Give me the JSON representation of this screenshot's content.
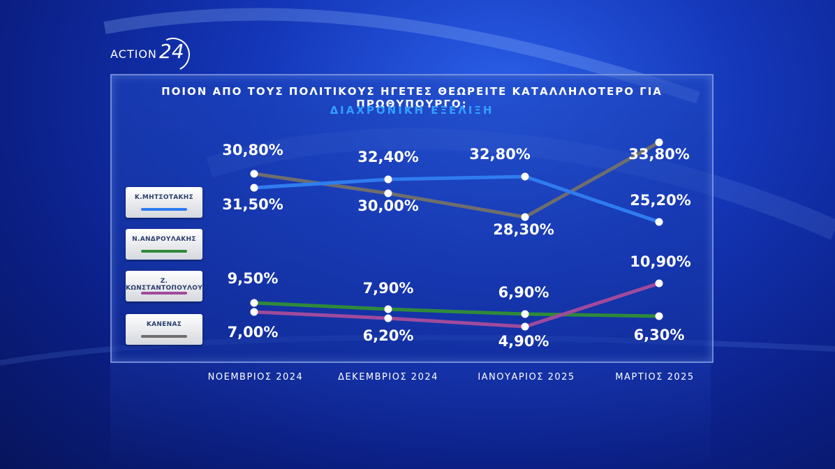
{
  "logo": {
    "word": "ACTION",
    "number": "24"
  },
  "title": "ΠΟΙΟΝ ΑΠΟ ΤΟΥΣ ΠΟΛΙΤΙΚΟΥΣ ΗΓΕΤΕΣ ΘΕΩΡΕΙΤΕ ΚΑΤΑΛΛΗΛΟΤΕΡΟ ΓΙΑ ΠΡΩΘΥΠΟΥΡΓΟ;",
  "subtitle": "ΔΙΑΧΡΟΝΙΚΗ ΕΞΕΛΙΞΗ",
  "legend": [
    {
      "label": "Κ.ΜΗΤΣΟΤΑΚΗΣ",
      "color": "#2f7cf0"
    },
    {
      "label": "Ν.ΑΝΔΡΟΥΛΑΚΗΣ",
      "color": "#2f8a3a"
    },
    {
      "label": "Ζ. ΚΩΝΣΤΑΝΤΟΠΟΥΛΟΥ",
      "color": "#a04a9c"
    },
    {
      "label": "ΚΑΝΕΝΑΣ",
      "color": "#6e6e6e"
    }
  ],
  "chart_data": {
    "type": "line",
    "title": "ΠΟΙΟΝ ΑΠΟ ΤΟΥΣ ΠΟΛΙΤΙΚΟΥΣ ΗΓΕΤΕΣ ΘΕΩΡΕΙΤΕ ΚΑΤΑΛΛΗΛΟΤΕΡΟ ΓΙΑ ΠΡΩΘΥΠΟΥΡΓΟ;",
    "subtitle": "ΔΙΑΧΡΟΝΙΚΗ ΕΞΕΛΙΞΗ",
    "categories": [
      "ΝΟΕΜΒΡΙΟΣ 2024",
      "ΔΕΚΕΜΒΡΙΟΣ 2024",
      "ΙΑΝΟΥΑΡΙΟΣ 2025",
      "ΜΑΡΤΙΟΣ 2025"
    ],
    "series": [
      {
        "name": "Κ.ΜΗΤΣΟΤΑΚΗΣ",
        "color": "#2f7cf0",
        "values": [
          31.5,
          32.4,
          32.8,
          25.2
        ],
        "labels": [
          "31,50%",
          "32,40%",
          "32,80%",
          "25,20%"
        ]
      },
      {
        "name": "ΚΑΝΕΝΑΣ",
        "color": "#6e6e6e",
        "values": [
          30.8,
          30.0,
          28.3,
          33.8
        ],
        "labels": [
          "30,80%",
          "30,00%",
          "28,30%",
          "33,80%"
        ]
      },
      {
        "name": "Ν.ΑΝΔΡΟΥΛΑΚΗΣ",
        "color": "#2f8a3a",
        "values": [
          9.5,
          7.9,
          6.9,
          6.3
        ],
        "labels": [
          "9,50%",
          "7,90%",
          "6,90%",
          "6,30%"
        ]
      },
      {
        "name": "Ζ. ΚΩΝΣΤΑΝΤΟΠΟΥΛΟΥ",
        "color": "#a04a9c",
        "values": [
          7.0,
          6.2,
          4.9,
          10.9
        ],
        "labels": [
          "7,00%",
          "6,20%",
          "4,90%",
          "10,90%"
        ]
      }
    ],
    "legend_position": "left",
    "grid": false
  }
}
